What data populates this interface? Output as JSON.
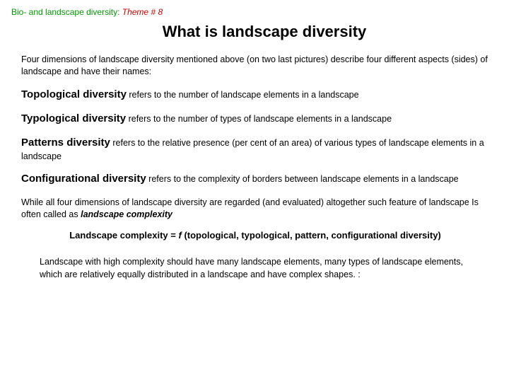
{
  "colors": {
    "green": "#009900",
    "red": "#cc0000",
    "text": "#000000",
    "background": "#ffffff"
  },
  "breadcrumb": {
    "part1": "Bio-  and landscape diversity: ",
    "part2": "Theme # 8"
  },
  "title": "What is landscape diversity",
  "intro": "Four dimensions of landscape diversity mentioned above (on two last pictures) describe four different aspects (sides) of landscape and have their names:",
  "defs": [
    {
      "term": "Topological diversity",
      "rest": " refers to the number of landscape elements in a landscape"
    },
    {
      "term": "Typological diversity",
      "rest": " refers to the number of types of landscape elements in a landscape"
    },
    {
      "term": "Patterns diversity",
      "rest": " refers to the relative presence (per cent of an area) of various types of landscape elements in a landscape"
    },
    {
      "term": "Configurational diversity",
      "rest": " refers to the complexity of borders between landscape elements in a landscape"
    }
  ],
  "closing_pre": "While all four dimensions of landscape diversity are regarded (and evaluated) altogether such feature of landscape Is often called as ",
  "closing_emph": "landscape complexity",
  "formula": {
    "lhs": "Landscape complexity ",
    "eq": "= ",
    "f": "f ",
    "args": "(topological, typological, pattern, configurational diversity)"
  },
  "note": "Landscape with high complexity should have many landscape elements, many types of  landscape elements, which are relatively equally distributed in a landscape and have complex shapes. :"
}
